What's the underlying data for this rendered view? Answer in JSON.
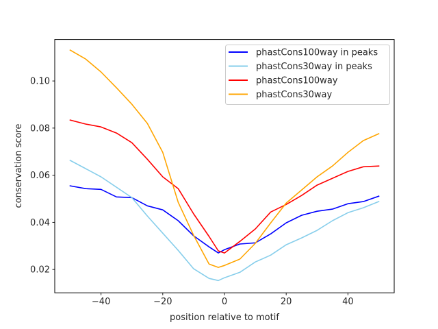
{
  "chart_data": {
    "type": "line",
    "title": "",
    "xlabel": "position relative to motif",
    "ylabel": "conservation score",
    "xlim": [
      -55,
      55
    ],
    "ylim": [
      0.0101,
      0.1176
    ],
    "xticks": [
      -40,
      -20,
      0,
      20,
      40
    ],
    "xtick_labels": [
      "−40",
      "−20",
      "0",
      "20",
      "40"
    ],
    "yticks": [
      0.02,
      0.04,
      0.06,
      0.08,
      0.1
    ],
    "ytick_labels": [
      "0.02",
      "0.04",
      "0.06",
      "0.08",
      "0.10"
    ],
    "grid": false,
    "legend_position": "top-right",
    "x": [
      -50,
      -45,
      -40,
      -35,
      -30,
      -25,
      -20,
      -15,
      -10,
      -5,
      -2,
      0,
      5,
      10,
      15,
      20,
      25,
      30,
      35,
      40,
      45,
      50
    ],
    "series": [
      {
        "name": "phastCons100way in peaks",
        "color": "#0000ff",
        "values": [
          0.0555,
          0.0543,
          0.054,
          0.0508,
          0.0505,
          0.047,
          0.0453,
          0.0407,
          0.0343,
          0.0296,
          0.027,
          0.0284,
          0.0308,
          0.0313,
          0.0351,
          0.0398,
          0.043,
          0.0447,
          0.0456,
          0.0479,
          0.0488,
          0.0511
        ]
      },
      {
        "name": "phastCons30way in peaks",
        "color": "#87ceeb",
        "values": [
          0.0663,
          0.0628,
          0.0593,
          0.0549,
          0.0505,
          0.0427,
          0.0354,
          0.0281,
          0.0203,
          0.0162,
          0.0153,
          0.0165,
          0.0188,
          0.0232,
          0.0261,
          0.0305,
          0.0334,
          0.0366,
          0.0407,
          0.0441,
          0.0462,
          0.0488
        ]
      },
      {
        "name": "phastCons100way",
        "color": "#ff0000",
        "values": [
          0.0834,
          0.0817,
          0.0805,
          0.0779,
          0.0738,
          0.0668,
          0.0593,
          0.0543,
          0.0436,
          0.034,
          0.0279,
          0.027,
          0.0319,
          0.0372,
          0.0444,
          0.0476,
          0.0514,
          0.0558,
          0.0587,
          0.0616,
          0.0636,
          0.0639
        ]
      },
      {
        "name": "phastCons30way",
        "color": "#ffa500",
        "values": [
          0.1131,
          0.1093,
          0.1038,
          0.0971,
          0.0901,
          0.082,
          0.0697,
          0.0485,
          0.0345,
          0.0223,
          0.0209,
          0.0217,
          0.0244,
          0.0311,
          0.0398,
          0.0482,
          0.0537,
          0.0593,
          0.0639,
          0.0697,
          0.0747,
          0.0776
        ]
      }
    ]
  }
}
